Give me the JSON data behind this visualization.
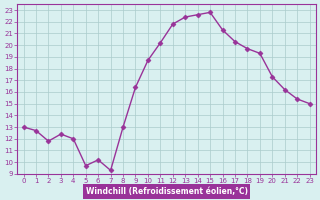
{
  "x": [
    0,
    1,
    2,
    3,
    4,
    5,
    6,
    7,
    8,
    9,
    10,
    11,
    12,
    13,
    14,
    15,
    16,
    17,
    18,
    19,
    20,
    21,
    22,
    23
  ],
  "y": [
    13.0,
    12.7,
    11.8,
    12.4,
    12.0,
    9.7,
    10.2,
    9.3,
    13.0,
    16.4,
    18.7,
    20.2,
    21.8,
    22.4,
    22.6,
    22.8,
    21.3,
    20.3,
    19.7,
    19.3,
    17.3,
    16.2,
    15.4,
    15.0
  ],
  "line_color": "#993399",
  "marker": "D",
  "markersize": 2.5,
  "linewidth": 1.0,
  "bg_color": "#d9f0f0",
  "plot_bg_color": "#d9f0f0",
  "grid_color": "#aacccc",
  "xlabel": "Windchill (Refroidissement éolien,°C)",
  "ylim": [
    9,
    23.5
  ],
  "xlim": [
    -0.5,
    23.5
  ],
  "yticks": [
    9,
    10,
    11,
    12,
    13,
    14,
    15,
    16,
    17,
    18,
    19,
    20,
    21,
    22,
    23
  ],
  "xticks": [
    0,
    1,
    2,
    3,
    4,
    5,
    6,
    7,
    8,
    9,
    10,
    11,
    12,
    13,
    14,
    15,
    16,
    17,
    18,
    19,
    20,
    21,
    22,
    23
  ]
}
